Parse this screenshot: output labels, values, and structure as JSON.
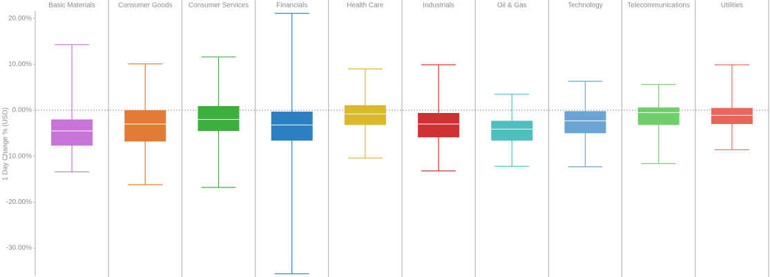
{
  "chart_data": {
    "type": "box",
    "y_label": "1 Day Change % (USD)",
    "categories": [
      "Basic Materials",
      "Consumer Goods",
      "Consumer Services",
      "Financials",
      "Health Care",
      "Industrials",
      "Oil & Gas",
      "Technology",
      "Telecommunications",
      "Utilities"
    ],
    "colors": [
      "#c774d6",
      "#e37a33",
      "#3bb13c",
      "#2a80c0",
      "#d9b927",
      "#cf3033",
      "#4dbfc0",
      "#6aa4d4",
      "#71cf6b",
      "#ea655c"
    ],
    "whisker_high": [
      14.3,
      10.1,
      11.6,
      21.1,
      9.0,
      9.9,
      3.5,
      6.3,
      5.6,
      9.9
    ],
    "q3": [
      -2.0,
      0.0,
      0.9,
      -0.3,
      1.1,
      -0.6,
      -2.3,
      -0.2,
      0.6,
      0.5
    ],
    "median": [
      -4.5,
      -3.0,
      -2.0,
      -3.2,
      -0.8,
      -3.0,
      -4.1,
      -2.3,
      -0.5,
      -1.1
    ],
    "q1": [
      -7.7,
      -6.8,
      -4.5,
      -6.6,
      -3.2,
      -5.9,
      -6.6,
      -5.0,
      -3.2,
      -3.0
    ],
    "whisker_low": [
      -13.4,
      -16.2,
      -16.8,
      -35.6,
      -10.4,
      -13.2,
      -12.2,
      -12.3,
      -11.6,
      -8.6
    ],
    "reference_line": 0,
    "ylim": [
      -36,
      21.6
    ],
    "yticks": [
      {
        "value": 20,
        "label": "20.00%"
      },
      {
        "value": 10,
        "label": "10.00%"
      },
      {
        "value": 0,
        "label": "0.00%"
      },
      {
        "value": -10,
        "label": "-10.00%"
      },
      {
        "value": -20,
        "label": "-20.00%"
      },
      {
        "value": -30,
        "label": "-30.00%"
      }
    ]
  }
}
